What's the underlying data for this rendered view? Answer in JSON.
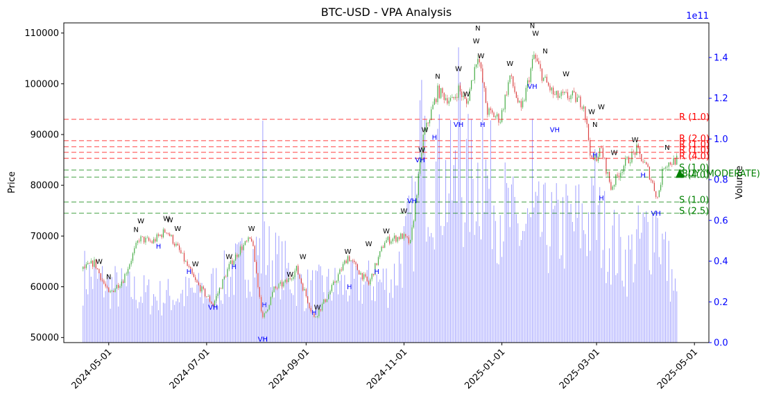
{
  "chart_data": {
    "type": "candlestick",
    "title": "BTC-USD - VPA Analysis",
    "ylabel": "Price",
    "y2label": "Volume",
    "y2_offset_text": "1e11",
    "ylim": [
      49000,
      112000
    ],
    "y2lim": [
      0,
      1.57
    ],
    "y_ticks": [
      50000,
      60000,
      70000,
      80000,
      90000,
      100000,
      110000
    ],
    "y2_ticks": [
      0.0,
      0.2,
      0.4,
      0.6,
      0.8,
      1.0,
      1.2,
      1.4
    ],
    "x_tick_labels": [
      "2024-05-01",
      "2024-07-01",
      "2024-09-01",
      "2024-11-01",
      "2025-01-01",
      "2025-03-01",
      "2025-05-01"
    ],
    "x_start": "2024-04-15",
    "x_end": "2025-05-01",
    "colors": {
      "up": "#2ca02c",
      "down": "#d62728",
      "volume": "#0000ff",
      "resistance": "#ff0000",
      "support": "#008000",
      "y2_axis": "#0000ff",
      "annot_w": "#000000",
      "annot_n": "#000000",
      "annot_h": "#0000ff",
      "annot_vh": "#0000ff"
    },
    "resistance_levels": [
      {
        "label": "R (1.0)",
        "value": 93000
      },
      {
        "label": "R (2.0)",
        "value": 88800
      },
      {
        "label": "R (1.0)",
        "value": 87600
      },
      {
        "label": "R (1.0)",
        "value": 86500
      },
      {
        "label": "R (4.0)",
        "value": 85300
      }
    ],
    "support_levels": [
      {
        "label": "S (1.0)",
        "value": 83000
      },
      {
        "label": "S (4.0)",
        "value": 81600
      },
      {
        "label": "S (1.0)",
        "value": 76700
      },
      {
        "label": "S (2.5)",
        "value": 74500
      }
    ],
    "signal": {
      "label": "BUY (MODERATE)",
      "value": 82300
    },
    "price_anchors": [
      [
        "2024-04-15",
        63500
      ],
      [
        "2024-04-22",
        64800
      ],
      [
        "2024-05-01",
        58500
      ],
      [
        "2024-05-10",
        61500
      ],
      [
        "2024-05-20",
        69500
      ],
      [
        "2024-05-28",
        68800
      ],
      [
        "2024-06-06",
        71200
      ],
      [
        "2024-06-15",
        66500
      ],
      [
        "2024-06-24",
        61000
      ],
      [
        "2024-07-05",
        56500
      ],
      [
        "2024-07-15",
        64000
      ],
      [
        "2024-07-22",
        67500
      ],
      [
        "2024-07-29",
        69500
      ],
      [
        "2024-08-05",
        53500
      ],
      [
        "2024-08-12",
        59500
      ],
      [
        "2024-08-20",
        61000
      ],
      [
        "2024-08-26",
        63500
      ],
      [
        "2024-09-06",
        53800
      ],
      [
        "2024-09-15",
        58500
      ],
      [
        "2024-09-27",
        66000
      ],
      [
        "2024-10-10",
        60500
      ],
      [
        "2024-10-20",
        69000
      ],
      [
        "2024-10-31",
        70000
      ],
      [
        "2024-11-05",
        68500
      ],
      [
        "2024-11-11",
        84000
      ],
      [
        "2024-11-13",
        89500
      ],
      [
        "2024-11-22",
        98500
      ],
      [
        "2024-12-01",
        96500
      ],
      [
        "2024-12-05",
        99000
      ],
      [
        "2024-12-10",
        96000
      ],
      [
        "2024-12-17",
        106000
      ],
      [
        "2024-12-23",
        94500
      ],
      [
        "2024-12-31",
        93000
      ],
      [
        "2025-01-06",
        101500
      ],
      [
        "2025-01-13",
        94500
      ],
      [
        "2025-01-21",
        105500
      ],
      [
        "2025-01-27",
        101000
      ],
      [
        "2025-02-03",
        97500
      ],
      [
        "2025-02-14",
        97500
      ],
      [
        "2025-02-21",
        96000
      ],
      [
        "2025-02-26",
        84500
      ],
      [
        "2025-03-04",
        87000
      ],
      [
        "2025-03-10",
        79500
      ],
      [
        "2025-03-18",
        84000
      ],
      [
        "2025-03-26",
        87000
      ],
      [
        "2025-04-02",
        83000
      ],
      [
        "2025-04-08",
        77500
      ],
      [
        "2025-04-12",
        84000
      ],
      [
        "2025-04-20",
        85000
      ]
    ],
    "volume_anchors": [
      [
        "2024-04-15",
        0.33
      ],
      [
        "2024-05-01",
        0.28
      ],
      [
        "2024-06-01",
        0.22
      ],
      [
        "2024-07-01",
        0.25
      ],
      [
        "2024-08-05",
        0.45
      ],
      [
        "2024-09-01",
        0.26
      ],
      [
        "2024-10-01",
        0.28
      ],
      [
        "2024-10-25",
        0.3
      ],
      [
        "2024-11-05",
        0.55
      ],
      [
        "2024-11-15",
        0.85
      ],
      [
        "2024-12-01",
        0.75
      ],
      [
        "2024-12-20",
        0.82
      ],
      [
        "2025-01-10",
        0.55
      ],
      [
        "2025-02-01",
        0.55
      ],
      [
        "2025-02-28",
        0.6
      ],
      [
        "2025-03-20",
        0.4
      ],
      [
        "2025-04-07",
        0.6
      ],
      [
        "2025-04-20",
        0.22
      ]
    ],
    "volume_spikes": [
      [
        "2024-08-05",
        1.09
      ],
      [
        "2024-11-11",
        1.19
      ],
      [
        "2024-11-12",
        1.29
      ],
      [
        "2024-11-13",
        0.98
      ],
      [
        "2024-11-22",
        1.05
      ],
      [
        "2024-12-05",
        1.45
      ],
      [
        "2024-12-06",
        1.28
      ],
      [
        "2024-12-20",
        1.3
      ],
      [
        "2025-01-20",
        1.1
      ],
      [
        "2025-02-28",
        0.95
      ],
      [
        "2025-04-07",
        0.65
      ]
    ],
    "annotations": [
      {
        "t": "W",
        "d": "2024-05-21",
        "v": 72500
      },
      {
        "t": "W",
        "d": "2024-06-06",
        "v": 73000
      },
      {
        "t": "W",
        "d": "2024-06-08",
        "v": 72700
      },
      {
        "t": "N",
        "d": "2024-05-18",
        "v": 70800
      },
      {
        "t": "W",
        "d": "2024-06-13",
        "v": 71000
      },
      {
        "t": "W",
        "d": "2024-04-25",
        "v": 64500
      },
      {
        "t": "N",
        "d": "2024-05-01",
        "v": 61500
      },
      {
        "t": "W",
        "d": "2024-06-24",
        "v": 64000
      },
      {
        "t": "W",
        "d": "2024-07-15",
        "v": 65500
      },
      {
        "t": "W",
        "d": "2024-07-29",
        "v": 71000
      },
      {
        "t": "W",
        "d": "2024-08-22",
        "v": 62000
      },
      {
        "t": "W",
        "d": "2024-08-30",
        "v": 65500
      },
      {
        "t": "W",
        "d": "2024-09-08",
        "v": 55500
      },
      {
        "t": "W",
        "d": "2024-09-27",
        "v": 66500
      },
      {
        "t": "W",
        "d": "2024-10-10",
        "v": 68000
      },
      {
        "t": "W",
        "d": "2024-10-21",
        "v": 70500
      },
      {
        "t": "W",
        "d": "2024-11-01",
        "v": 74500
      },
      {
        "t": "W",
        "d": "2024-11-12",
        "v": 86500
      },
      {
        "t": "W",
        "d": "2024-11-14",
        "v": 90500
      },
      {
        "t": "N",
        "d": "2024-11-22",
        "v": 101000
      },
      {
        "t": "W",
        "d": "2024-12-05",
        "v": 102500
      },
      {
        "t": "W",
        "d": "2024-12-10",
        "v": 97500
      },
      {
        "t": "W",
        "d": "2024-12-16",
        "v": 108000
      },
      {
        "t": "N",
        "d": "2024-12-17",
        "v": 110500
      },
      {
        "t": "W",
        "d": "2024-12-19",
        "v": 105000
      },
      {
        "t": "W",
        "d": "2025-01-06",
        "v": 103500
      },
      {
        "t": "N",
        "d": "2025-01-20",
        "v": 111000
      },
      {
        "t": "W",
        "d": "2025-01-22",
        "v": 109500
      },
      {
        "t": "N",
        "d": "2025-01-28",
        "v": 106000
      },
      {
        "t": "W",
        "d": "2025-02-10",
        "v": 101500
      },
      {
        "t": "W",
        "d": "2025-02-26",
        "v": 94000
      },
      {
        "t": "N",
        "d": "2025-02-28",
        "v": 91500
      },
      {
        "t": "W",
        "d": "2025-03-04",
        "v": 95000
      },
      {
        "t": "W",
        "d": "2025-03-25",
        "v": 88500
      },
      {
        "t": "N",
        "d": "2025-04-14",
        "v": 87000
      },
      {
        "t": "W",
        "d": "2025-03-12",
        "v": 86000
      },
      {
        "t": "H",
        "d": "2024-06-01",
        "v": 67500
      },
      {
        "t": "H",
        "d": "2024-06-20",
        "v": 62500
      },
      {
        "t": "VH",
        "d": "2024-07-05",
        "v": 55500
      },
      {
        "t": "H",
        "d": "2024-07-18",
        "v": 63500
      },
      {
        "t": "VH",
        "d": "2024-08-05",
        "v": 49200
      },
      {
        "t": "H",
        "d": "2024-08-06",
        "v": 56000
      },
      {
        "t": "H",
        "d": "2024-09-06",
        "v": 54500
      },
      {
        "t": "H",
        "d": "2024-09-28",
        "v": 59500
      },
      {
        "t": "H",
        "d": "2024-10-15",
        "v": 62500
      },
      {
        "t": "VH",
        "d": "2024-11-06",
        "v": 76500
      },
      {
        "t": "VH",
        "d": "2024-11-11",
        "v": 84500
      },
      {
        "t": "H",
        "d": "2024-11-20",
        "v": 89000
      },
      {
        "t": "VH",
        "d": "2024-12-05",
        "v": 91500
      },
      {
        "t": "H",
        "d": "2024-12-20",
        "v": 91500
      },
      {
        "t": "VH",
        "d": "2025-01-20",
        "v": 99000
      },
      {
        "t": "VH",
        "d": "2025-02-03",
        "v": 90500
      },
      {
        "t": "H",
        "d": "2025-02-28",
        "v": 85500
      },
      {
        "t": "H",
        "d": "2025-03-04",
        "v": 77000
      },
      {
        "t": "VH",
        "d": "2025-04-07",
        "v": 74000
      },
      {
        "t": "H",
        "d": "2025-03-30",
        "v": 81500
      }
    ]
  }
}
